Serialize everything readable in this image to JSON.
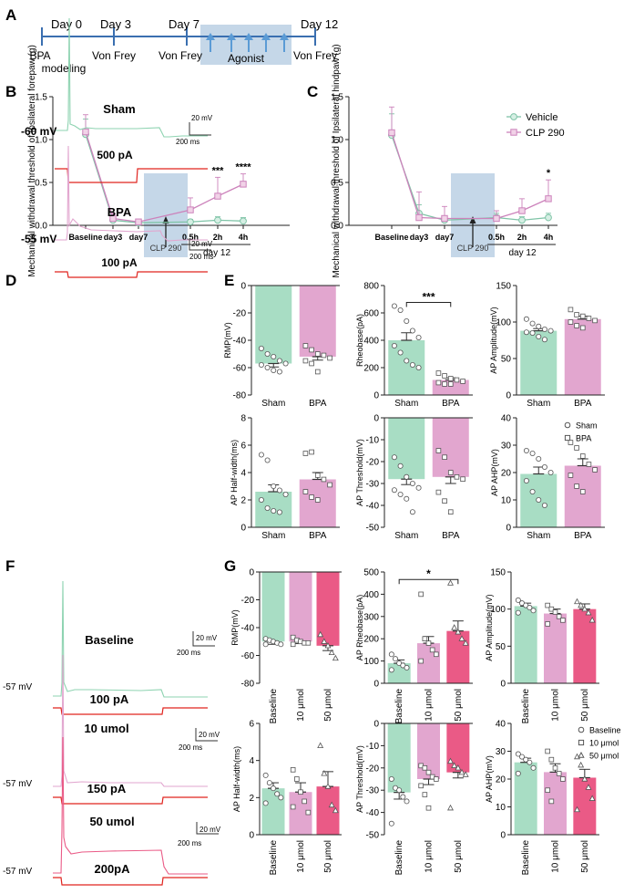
{
  "figure": {
    "panel_letters": [
      "A",
      "B",
      "C",
      "D",
      "E",
      "F",
      "G"
    ],
    "timeline": {
      "days": [
        "Day 0",
        "Day 3",
        "Day 7",
        "Day 12"
      ],
      "events": [
        "BPA",
        "modeling",
        "Von Frey",
        "Von Frey",
        "Agonist",
        "Von Frey"
      ]
    },
    "traces": {
      "d": {
        "labels": [
          "Sham",
          "BPA"
        ],
        "voltages": [
          "-60 mV",
          "-55 mV"
        ],
        "currents": [
          "500 pA",
          "100 pA"
        ],
        "scale_mv": "20 mV",
        "scale_ms": "200 ms"
      },
      "f": {
        "labels": [
          "Baseline",
          "10 umol",
          "50 umol"
        ],
        "voltages": [
          "-57 mV",
          "-57 mV",
          "-57 mV"
        ],
        "currents": [
          "100 pA",
          "150 pA",
          "200pA"
        ],
        "scale_mv": "20 mV",
        "scale_ms": "200 ms"
      }
    },
    "colors": {
      "sham": "#a8ddc4",
      "bpa": "#e2a6cf",
      "baseline": "#a8ddc4",
      "umol10": "#e2a6cf",
      "umol50": "#ea5a86",
      "vehicle": "#7fc4a7",
      "clp": "#cc82bb",
      "shade": "#c5d7e8",
      "stim": "#e0241f",
      "arrow": "#5b9bd5"
    }
  },
  "chart_data": [
    {
      "id": "B",
      "type": "line",
      "ylabel": "Mechanical withdrawal threshold of Ipsilateral forepaw (g)",
      "categories": [
        "Baseline",
        "day3",
        "day7",
        "0.5h",
        "2h",
        "4h"
      ],
      "group_label": "day 12",
      "shaded_label": "CLP 290",
      "ylim": [
        0,
        1.5
      ],
      "yticks": [
        "0.0",
        "0.5",
        "1.0",
        "1.5"
      ],
      "series": [
        {
          "name": "Vehicle",
          "values": [
            1.06,
            0.06,
            0.03,
            0.04,
            0.06,
            0.05
          ],
          "errors": [
            0.18,
            0.05,
            0.02,
            0.03,
            0.04,
            0.04
          ]
        },
        {
          "name": "CLP 290",
          "values": [
            1.09,
            0.08,
            0.04,
            0.18,
            0.34,
            0.48
          ],
          "errors": [
            0.2,
            0.06,
            0.02,
            0.14,
            0.22,
            0.12
          ]
        }
      ],
      "significance": [
        {
          "category": "2h",
          "label": "***"
        },
        {
          "category": "4h",
          "label": "****"
        }
      ]
    },
    {
      "id": "C",
      "type": "line",
      "ylabel": "Mechanical withdrawal threshold of Ipsilateral hindpaw (g)",
      "categories": [
        "Baseline",
        "day3",
        "day7",
        "0.5h",
        "2h",
        "4h"
      ],
      "group_label": "day 12",
      "shaded_label": "CLP 290",
      "ylim": [
        0,
        1.5
      ],
      "yticks": [
        "0.0",
        "0.5",
        "1.0",
        "1.5"
      ],
      "legend": [
        "Vehicle",
        "CLP 290"
      ],
      "series": [
        {
          "name": "Vehicle",
          "values": [
            1.05,
            0.14,
            0.06,
            0.09,
            0.06,
            0.09
          ],
          "errors": [
            0.25,
            0.1,
            0.05,
            0.05,
            0.04,
            0.05
          ]
        },
        {
          "name": "CLP 290",
          "values": [
            1.08,
            0.09,
            0.08,
            0.08,
            0.17,
            0.31
          ],
          "errors": [
            0.3,
            0.3,
            0.14,
            0.09,
            0.14,
            0.22
          ]
        }
      ],
      "significance": [
        {
          "category": "4h",
          "label": "*"
        }
      ]
    },
    {
      "id": "E-RMP",
      "type": "bar",
      "ylabel": "RMP(mV)",
      "categories": [
        "Sham",
        "BPA"
      ],
      "values": [
        -57,
        -52
      ],
      "errors": [
        2.5,
        2.5
      ],
      "ylim": [
        -80,
        0
      ],
      "yticks": [
        "-80",
        "-60",
        "-40",
        "-20",
        "0"
      ],
      "points": [
        [
          -46,
          -50,
          -52,
          -55,
          -57,
          -58,
          -60,
          -62,
          -63
        ],
        [
          -44,
          -47,
          -50,
          -51,
          -53,
          -55,
          -57,
          -63
        ]
      ]
    },
    {
      "id": "E-Rheobase",
      "type": "bar",
      "ylabel": "Rheobase(pA)",
      "categories": [
        "Sham",
        "BPA"
      ],
      "values": [
        400,
        110
      ],
      "errors": [
        55,
        15
      ],
      "ylim": [
        0,
        800
      ],
      "yticks": [
        "0",
        "200",
        "400",
        "600",
        "800"
      ],
      "points": [
        [
          650,
          620,
          540,
          470,
          420,
          360,
          310,
          250,
          220,
          200
        ],
        [
          160,
          140,
          120,
          110,
          100,
          90,
          80,
          80
        ]
      ],
      "significance": [
        {
          "label": "***"
        }
      ]
    },
    {
      "id": "E-AP-Amplitude",
      "type": "bar",
      "ylabel": "AP Amplitude(mV)",
      "categories": [
        "Sham",
        "BPA"
      ],
      "values": [
        88,
        104
      ],
      "errors": [
        3,
        4
      ],
      "ylim": [
        0,
        150
      ],
      "yticks": [
        "0",
        "50",
        "100",
        "150"
      ],
      "points": [
        [
          104,
          98,
          94,
          90,
          88,
          86,
          85,
          80,
          76
        ],
        [
          117,
          110,
          108,
          105,
          102,
          100,
          95,
          92
        ]
      ]
    },
    {
      "id": "E-AP-Half-width",
      "type": "bar",
      "ylabel": "AP Half-width(ms)",
      "categories": [
        "Sham",
        "BPA"
      ],
      "values": [
        2.6,
        3.5
      ],
      "errors": [
        0.5,
        0.5
      ],
      "ylim": [
        0,
        8
      ],
      "yticks": [
        "0",
        "2",
        "4",
        "6",
        "8"
      ],
      "points": [
        [
          5.3,
          4.9,
          3.0,
          2.7,
          2.4,
          2.0,
          1.4,
          1.2,
          1.1
        ],
        [
          5.4,
          5.5,
          3.8,
          3.5,
          3.1,
          2.6,
          2.2,
          2.0
        ]
      ]
    },
    {
      "id": "E-AP-Threshold",
      "type": "bar",
      "ylabel": "AP Threshold(mV)",
      "categories": [
        "Sham",
        "BPA"
      ],
      "values": [
        -28,
        -27
      ],
      "errors": [
        2.5,
        3
      ],
      "ylim": [
        -50,
        0
      ],
      "yticks": [
        "-50",
        "-40",
        "-30",
        "-20",
        "-10",
        "0"
      ],
      "points": [
        [
          -18,
          -22,
          -27,
          -30,
          -32,
          -33,
          -35,
          -37,
          -43
        ],
        [
          -15,
          -18,
          -25,
          -27,
          -28,
          -34,
          -38,
          -43
        ]
      ]
    },
    {
      "id": "E-AP-AHP",
      "type": "bar",
      "ylabel": "AP AHP(mV)",
      "categories": [
        "Sham",
        "BPA"
      ],
      "values": [
        19.5,
        22.5
      ],
      "errors": [
        2.5,
        2.5
      ],
      "ylim": [
        0,
        40
      ],
      "yticks": [
        "0",
        "10",
        "20",
        "30",
        "40"
      ],
      "points": [
        [
          28,
          27,
          25,
          22,
          20,
          17,
          13,
          10,
          8
        ],
        [
          31,
          29,
          26,
          23,
          21,
          19,
          15,
          13
        ]
      ],
      "legend": [
        "Sham",
        "BPA"
      ]
    },
    {
      "id": "G-RMP",
      "type": "bar",
      "ylabel": "RMP(mV)",
      "categories": [
        "Baseline",
        "10 μmol",
        "50 μmol"
      ],
      "values": [
        -50,
        -50,
        -53
      ],
      "errors": [
        2,
        1.5,
        3.5
      ],
      "ylim": [
        -80,
        0
      ],
      "yticks": [
        "-80",
        "-60",
        "-40",
        "-20",
        "0"
      ],
      "points": [
        [
          -48,
          -49,
          -50,
          -51,
          -52,
          -52
        ],
        [
          -47,
          -49,
          -50,
          -51,
          -51,
          -52
        ],
        [
          -45,
          -50,
          -53,
          -58,
          -62
        ]
      ]
    },
    {
      "id": "G-AP-Rheobase",
      "type": "bar",
      "ylabel": "AP Rheobase(pA)",
      "categories": [
        "Baseline",
        "10 μmol",
        "50 μmol"
      ],
      "values": [
        90,
        180,
        235
      ],
      "errors": [
        15,
        30,
        45
      ],
      "ylim": [
        0,
        500
      ],
      "yticks": [
        "0",
        "100",
        "200",
        "300",
        "400",
        "500"
      ],
      "points": [
        [
          130,
          110,
          90,
          80,
          70,
          60
        ],
        [
          400,
          200,
          180,
          150,
          130,
          100
        ],
        [
          450,
          250,
          230,
          200,
          180
        ]
      ],
      "significance": [
        {
          "label": "*"
        }
      ]
    },
    {
      "id": "G-AP-Amplitude",
      "type": "bar",
      "ylabel": "AP Amplitude(mV)",
      "categories": [
        "Baseline",
        "10 μmol",
        "50 μmol"
      ],
      "values": [
        104,
        94,
        100
      ],
      "errors": [
        4,
        6,
        7
      ],
      "ylim": [
        0,
        150
      ],
      "yticks": [
        "0",
        "50",
        "100",
        "150"
      ],
      "points": [
        [
          112,
          108,
          105,
          102,
          98,
          95
        ],
        [
          105,
          100,
          96,
          90,
          85,
          80
        ],
        [
          110,
          105,
          100,
          95,
          85
        ]
      ]
    },
    {
      "id": "G-AP-Half-width",
      "type": "bar",
      "ylabel": "AP Half-width(ms)",
      "categories": [
        "Baseline",
        "10 μmol",
        "50 μmol"
      ],
      "values": [
        2.5,
        2.3,
        2.6
      ],
      "errors": [
        0.3,
        0.5,
        0.8
      ],
      "ylim": [
        0,
        6
      ],
      "yticks": [
        "0",
        "2",
        "4",
        "6"
      ],
      "points": [
        [
          3.2,
          2.8,
          2.5,
          2.2,
          2.0,
          1.7
        ],
        [
          3.5,
          3.0,
          2.3,
          1.8,
          1.2,
          1.5
        ],
        [
          4.8,
          3.3,
          2.6,
          1.6,
          1.3
        ]
      ]
    },
    {
      "id": "G-AP-Threshold",
      "type": "bar",
      "ylabel": "AP Threshold(mV)",
      "categories": [
        "Baseline",
        "10 μmol",
        "50 μmol"
      ],
      "values": [
        -31,
        -25,
        -22
      ],
      "errors": [
        3,
        2.5,
        2.5
      ],
      "ylim": [
        -50,
        0
      ],
      "yticks": [
        "-50",
        "-40",
        "-30",
        "-20",
        "-10",
        "0"
      ],
      "points": [
        [
          -25,
          -29,
          -30,
          -33,
          -35,
          -45
        ],
        [
          -19,
          -20,
          -22,
          -24,
          -25,
          -28,
          -32,
          -38
        ],
        [
          -17,
          -19,
          -20,
          -22,
          -23,
          -38
        ]
      ]
    },
    {
      "id": "G-AP-AHP",
      "type": "bar",
      "ylabel": "AP AHP(mV)",
      "categories": [
        "Baseline",
        "10 μmol",
        "50 μmol"
      ],
      "values": [
        26,
        22.5,
        20.5
      ],
      "errors": [
        1.5,
        3,
        3
      ],
      "ylim": [
        0,
        40
      ],
      "yticks": [
        "0",
        "10",
        "20",
        "30",
        "40"
      ],
      "points": [
        [
          29,
          28,
          27,
          26,
          24,
          22
        ],
        [
          30,
          27,
          24,
          22,
          20,
          16,
          12
        ],
        [
          28,
          25,
          20,
          17,
          13,
          9
        ]
      ],
      "legend": [
        "Baseline",
        "10 μmol",
        "50 μmol"
      ]
    }
  ]
}
